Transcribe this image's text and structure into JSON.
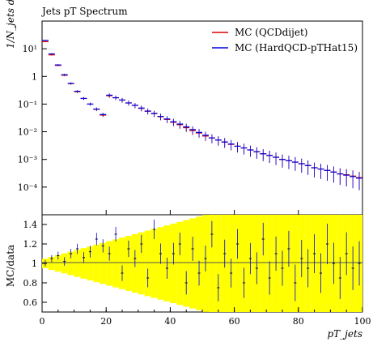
{
  "chart_data": {
    "type": "scatter",
    "title": "Jets pT Spectrum",
    "xlabel": "pT_jets",
    "ylabel": "1/N_jets dN/dpT",
    "ratio_ylabel": "MC/data",
    "xlim": [
      0,
      100
    ],
    "ylim": [
      1e-05,
      100
    ],
    "yscale": "log",
    "ratio_ylim": [
      0.5,
      1.5
    ],
    "x_ticks": [
      "0",
      "20",
      "40",
      "60",
      "80",
      "100"
    ],
    "y_ticks": [
      "10¹",
      "1",
      "10⁻¹",
      "10⁻²",
      "10⁻³",
      "10⁻⁴"
    ],
    "ratio_ticks": [
      "0.6",
      "0.8",
      "1",
      "1.2",
      "1.4"
    ],
    "legend_position": "top-right",
    "series": [
      {
        "name": "MC (QCDdijet)",
        "color": "#e00000",
        "x": [
          1,
          3,
          5,
          7,
          9,
          11,
          13,
          15,
          17,
          19,
          21,
          23,
          25,
          27,
          29,
          31,
          33,
          35,
          37,
          39,
          41,
          43,
          45,
          47,
          49,
          51,
          53,
          55,
          57,
          59,
          61,
          63,
          65,
          67,
          69,
          71,
          73,
          75,
          77,
          79,
          81,
          83,
          85,
          87,
          89,
          91,
          93,
          95,
          97,
          99
        ],
        "y": [
          18,
          6,
          2.5,
          1.1,
          0.55,
          0.28,
          0.16,
          0.1,
          0.065,
          0.04,
          0.2,
          0.17,
          0.14,
          0.11,
          0.09,
          0.07,
          0.055,
          0.045,
          0.035,
          0.028,
          0.022,
          0.018,
          0.014,
          0.011,
          0.009,
          0.007,
          0.006,
          0.005,
          0.0042,
          0.0035,
          0.003,
          0.0026,
          0.0022,
          0.0019,
          0.0016,
          0.0014,
          0.0012,
          0.001,
          0.0009,
          0.0008,
          0.0007,
          0.0006,
          0.0005,
          0.00045,
          0.0004,
          0.00035,
          0.0003,
          0.00028,
          0.00025,
          0.00022
        ]
      },
      {
        "name": "MC (HardQCD-pTHat15)",
        "color": "#0000e0",
        "x": [
          1,
          3,
          5,
          7,
          9,
          11,
          13,
          15,
          17,
          19,
          21,
          23,
          25,
          27,
          29,
          31,
          33,
          35,
          37,
          39,
          41,
          43,
          45,
          47,
          49,
          51,
          53,
          55,
          57,
          59,
          61,
          63,
          65,
          67,
          69,
          71,
          73,
          75,
          77,
          79,
          81,
          83,
          85,
          87,
          89,
          91,
          93,
          95,
          97,
          99
        ],
        "y": [
          20,
          6.5,
          2.6,
          1.15,
          0.56,
          0.29,
          0.16,
          0.1,
          0.066,
          0.042,
          0.21,
          0.17,
          0.14,
          0.11,
          0.09,
          0.072,
          0.056,
          0.046,
          0.036,
          0.029,
          0.023,
          0.019,
          0.015,
          0.012,
          0.0095,
          0.0075,
          0.006,
          0.005,
          0.0043,
          0.0036,
          0.003,
          0.0026,
          0.0022,
          0.0019,
          0.0016,
          0.0014,
          0.0012,
          0.001,
          0.0009,
          0.0008,
          0.0007,
          0.0006,
          0.0005,
          0.00045,
          0.0004,
          0.00035,
          0.0003,
          0.00027,
          0.00024,
          0.00021
        ]
      }
    ],
    "ratio": {
      "x": [
        1,
        3,
        5,
        7,
        9,
        11,
        13,
        15,
        17,
        19,
        21,
        23,
        25,
        27,
        29,
        31,
        33,
        35,
        37,
        39,
        41,
        43,
        45,
        47,
        49,
        51,
        53,
        55,
        57,
        59,
        61,
        63,
        65,
        67,
        69,
        71,
        73,
        75,
        77,
        79,
        81,
        83,
        85,
        87,
        89,
        91,
        93,
        95,
        97,
        99
      ],
      "y": [
        1.0,
        1.05,
        1.08,
        1.02,
        1.1,
        1.15,
        1.06,
        1.12,
        1.25,
        1.18,
        1.1,
        1.3,
        0.9,
        1.15,
        1.05,
        1.2,
        0.85,
        1.35,
        1.1,
        0.95,
        1.1,
        1.2,
        0.8,
        1.15,
        0.9,
        1.05,
        1.3,
        0.75,
        1.1,
        0.9,
        1.2,
        0.8,
        1.05,
        0.95,
        1.25,
        0.85,
        1.1,
        0.95,
        1.15,
        0.8,
        1.05,
        0.95,
        1.1,
        0.9,
        1.2,
        1.0,
        0.85,
        1.1,
        0.95,
        1.0
      ]
    }
  }
}
